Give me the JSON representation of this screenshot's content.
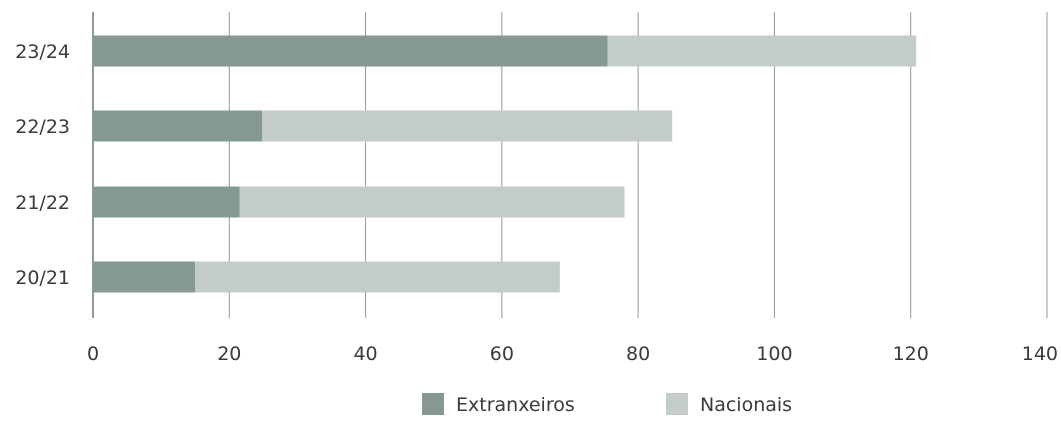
{
  "chart_data": {
    "type": "bar",
    "orientation": "horizontal",
    "stacked": true,
    "categories": [
      "23/24",
      "22/23",
      "21/22",
      "20/21"
    ],
    "series": [
      {
        "name": "Extranxeiros",
        "values": [
          75.5,
          24.8,
          21.5,
          15.0
        ],
        "color": "#869893"
      },
      {
        "name": "Nacionais",
        "values": [
          45.3,
          60.2,
          56.5,
          53.5
        ],
        "color": "#c4cccb"
      }
    ],
    "xlim": [
      0,
      140
    ],
    "x_ticks": [
      0,
      20,
      40,
      60,
      80,
      100,
      120,
      140
    ],
    "grid": "vertical",
    "legend_position": "bottom-center",
    "title": "",
    "xlabel": "",
    "ylabel": ""
  }
}
